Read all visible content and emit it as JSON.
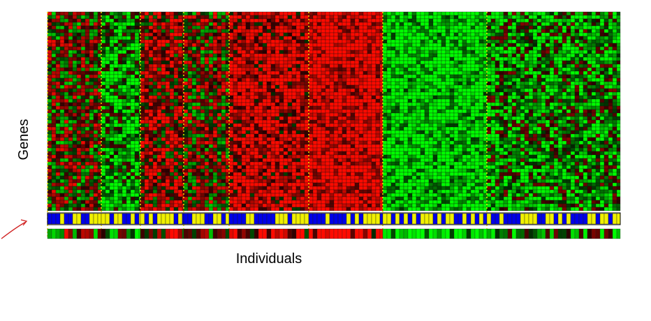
{
  "labels": {
    "y": "Genes",
    "x": "Individuals"
  }
}
